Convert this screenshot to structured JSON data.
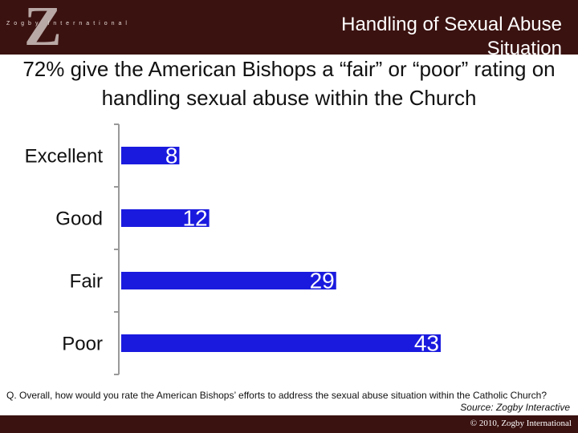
{
  "brand": {
    "letter": "Z",
    "name": "Zogby International"
  },
  "chart_data": {
    "type": "bar",
    "title": "Handling of Sexual Abuse Situation",
    "subtitle": "72% give the American Bishops a “fair” or “poor” rating on handling sexual abuse within the Church",
    "categories": [
      "Excellent",
      "Good",
      "Fair",
      "Poor"
    ],
    "values": [
      8,
      12,
      29,
      43
    ],
    "color": "#1a1adf",
    "note": "Q. Overall, how would you rate the American Bishops’ efforts to address the sexual abuse situation within the Catholic Church?",
    "source": "Source: Zogby Interactive"
  },
  "footer": "© 2010, Zogby International"
}
